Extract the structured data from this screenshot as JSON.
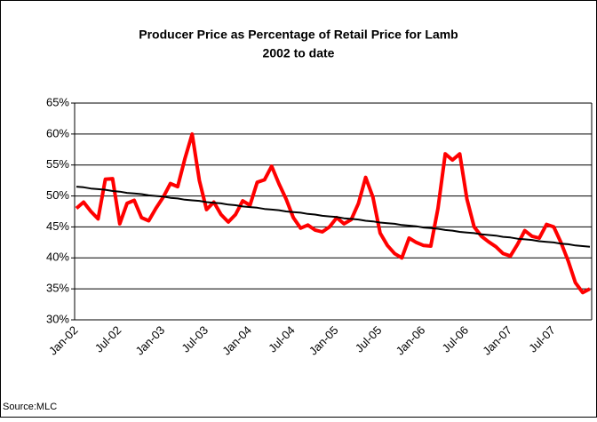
{
  "chart_data": {
    "type": "line",
    "title": "Producer Price as Percentage of Retail Price for Lamb",
    "subtitle": "2002 to date",
    "source": "Source:MLC",
    "categories": [
      "Jan-02",
      null,
      null,
      null,
      null,
      null,
      "Jul-02",
      null,
      null,
      null,
      null,
      null,
      "Jan-03",
      null,
      null,
      null,
      null,
      null,
      "Jul-03",
      null,
      null,
      null,
      null,
      null,
      "Jan-04",
      null,
      null,
      null,
      null,
      null,
      "Jul-04",
      null,
      null,
      null,
      null,
      null,
      "Jan-05",
      null,
      null,
      null,
      null,
      null,
      "Jul-05",
      null,
      null,
      null,
      null,
      null,
      "Jan-06",
      null,
      null,
      null,
      null,
      null,
      "Jul-06",
      null,
      null,
      null,
      null,
      null,
      "Jan-07",
      null,
      null,
      null,
      null,
      null,
      "Jul-07",
      null,
      null,
      null,
      null,
      null
    ],
    "series": [
      {
        "color": "#ff0000",
        "width": 4,
        "values": [
          48,
          49,
          47.5,
          46.3,
          52.7,
          52.8,
          45.5,
          48.8,
          49.3,
          46.5,
          46,
          48,
          49.8,
          52,
          51.5,
          56,
          60,
          52.5,
          47.8,
          49,
          47,
          45.8,
          47,
          49.2,
          48.5,
          52.2,
          52.6,
          54.8,
          52,
          49.5,
          46.5,
          44.8,
          45.3,
          44.5,
          44.2,
          45,
          46.5,
          45.5,
          46.2,
          48.8,
          53,
          49.8,
          44,
          42,
          40.7,
          40,
          43.2,
          42.5,
          42,
          41.9,
          48,
          56.8,
          55.8,
          56.8,
          49.5,
          45,
          43.5,
          42.6,
          41.8,
          40.7,
          40.3,
          42.2,
          44.4,
          43.5,
          43.2,
          45.4,
          45,
          42.5,
          39.5,
          36,
          34.4,
          35
        ]
      },
      {
        "color": "#000000",
        "width": 2,
        "values": [
          51.5,
          51.4,
          51.2,
          51.1,
          51,
          50.8,
          50.7,
          50.5,
          50.4,
          50.3,
          50.1,
          50,
          49.9,
          49.7,
          49.6,
          49.4,
          49.3,
          49.2,
          49,
          48.9,
          48.8,
          48.6,
          48.5,
          48.3,
          48.2,
          48.1,
          47.9,
          47.8,
          47.7,
          47.5,
          47.4,
          47.3,
          47.1,
          47,
          46.8,
          46.7,
          46.6,
          46.4,
          46.3,
          46.2,
          46,
          45.9,
          45.7,
          45.6,
          45.5,
          45.3,
          45.2,
          45.1,
          44.9,
          44.8,
          44.7,
          44.5,
          44.4,
          44.2,
          44.1,
          44,
          43.8,
          43.7,
          43.6,
          43.4,
          43.3,
          43.1,
          43,
          42.9,
          42.7,
          42.6,
          42.5,
          42.3,
          42.2,
          42,
          41.9,
          41.8
        ]
      }
    ],
    "ylim": [
      30,
      65
    ],
    "yticks": [
      {
        "value": 30,
        "label": "30%"
      },
      {
        "value": 35,
        "label": "35%"
      },
      {
        "value": 40,
        "label": "40%"
      },
      {
        "value": 45,
        "label": "45%"
      },
      {
        "value": 50,
        "label": "50%"
      },
      {
        "value": 55,
        "label": "55%"
      },
      {
        "value": 60,
        "label": "60%"
      },
      {
        "value": 65,
        "label": "65%"
      }
    ],
    "grid": true
  }
}
